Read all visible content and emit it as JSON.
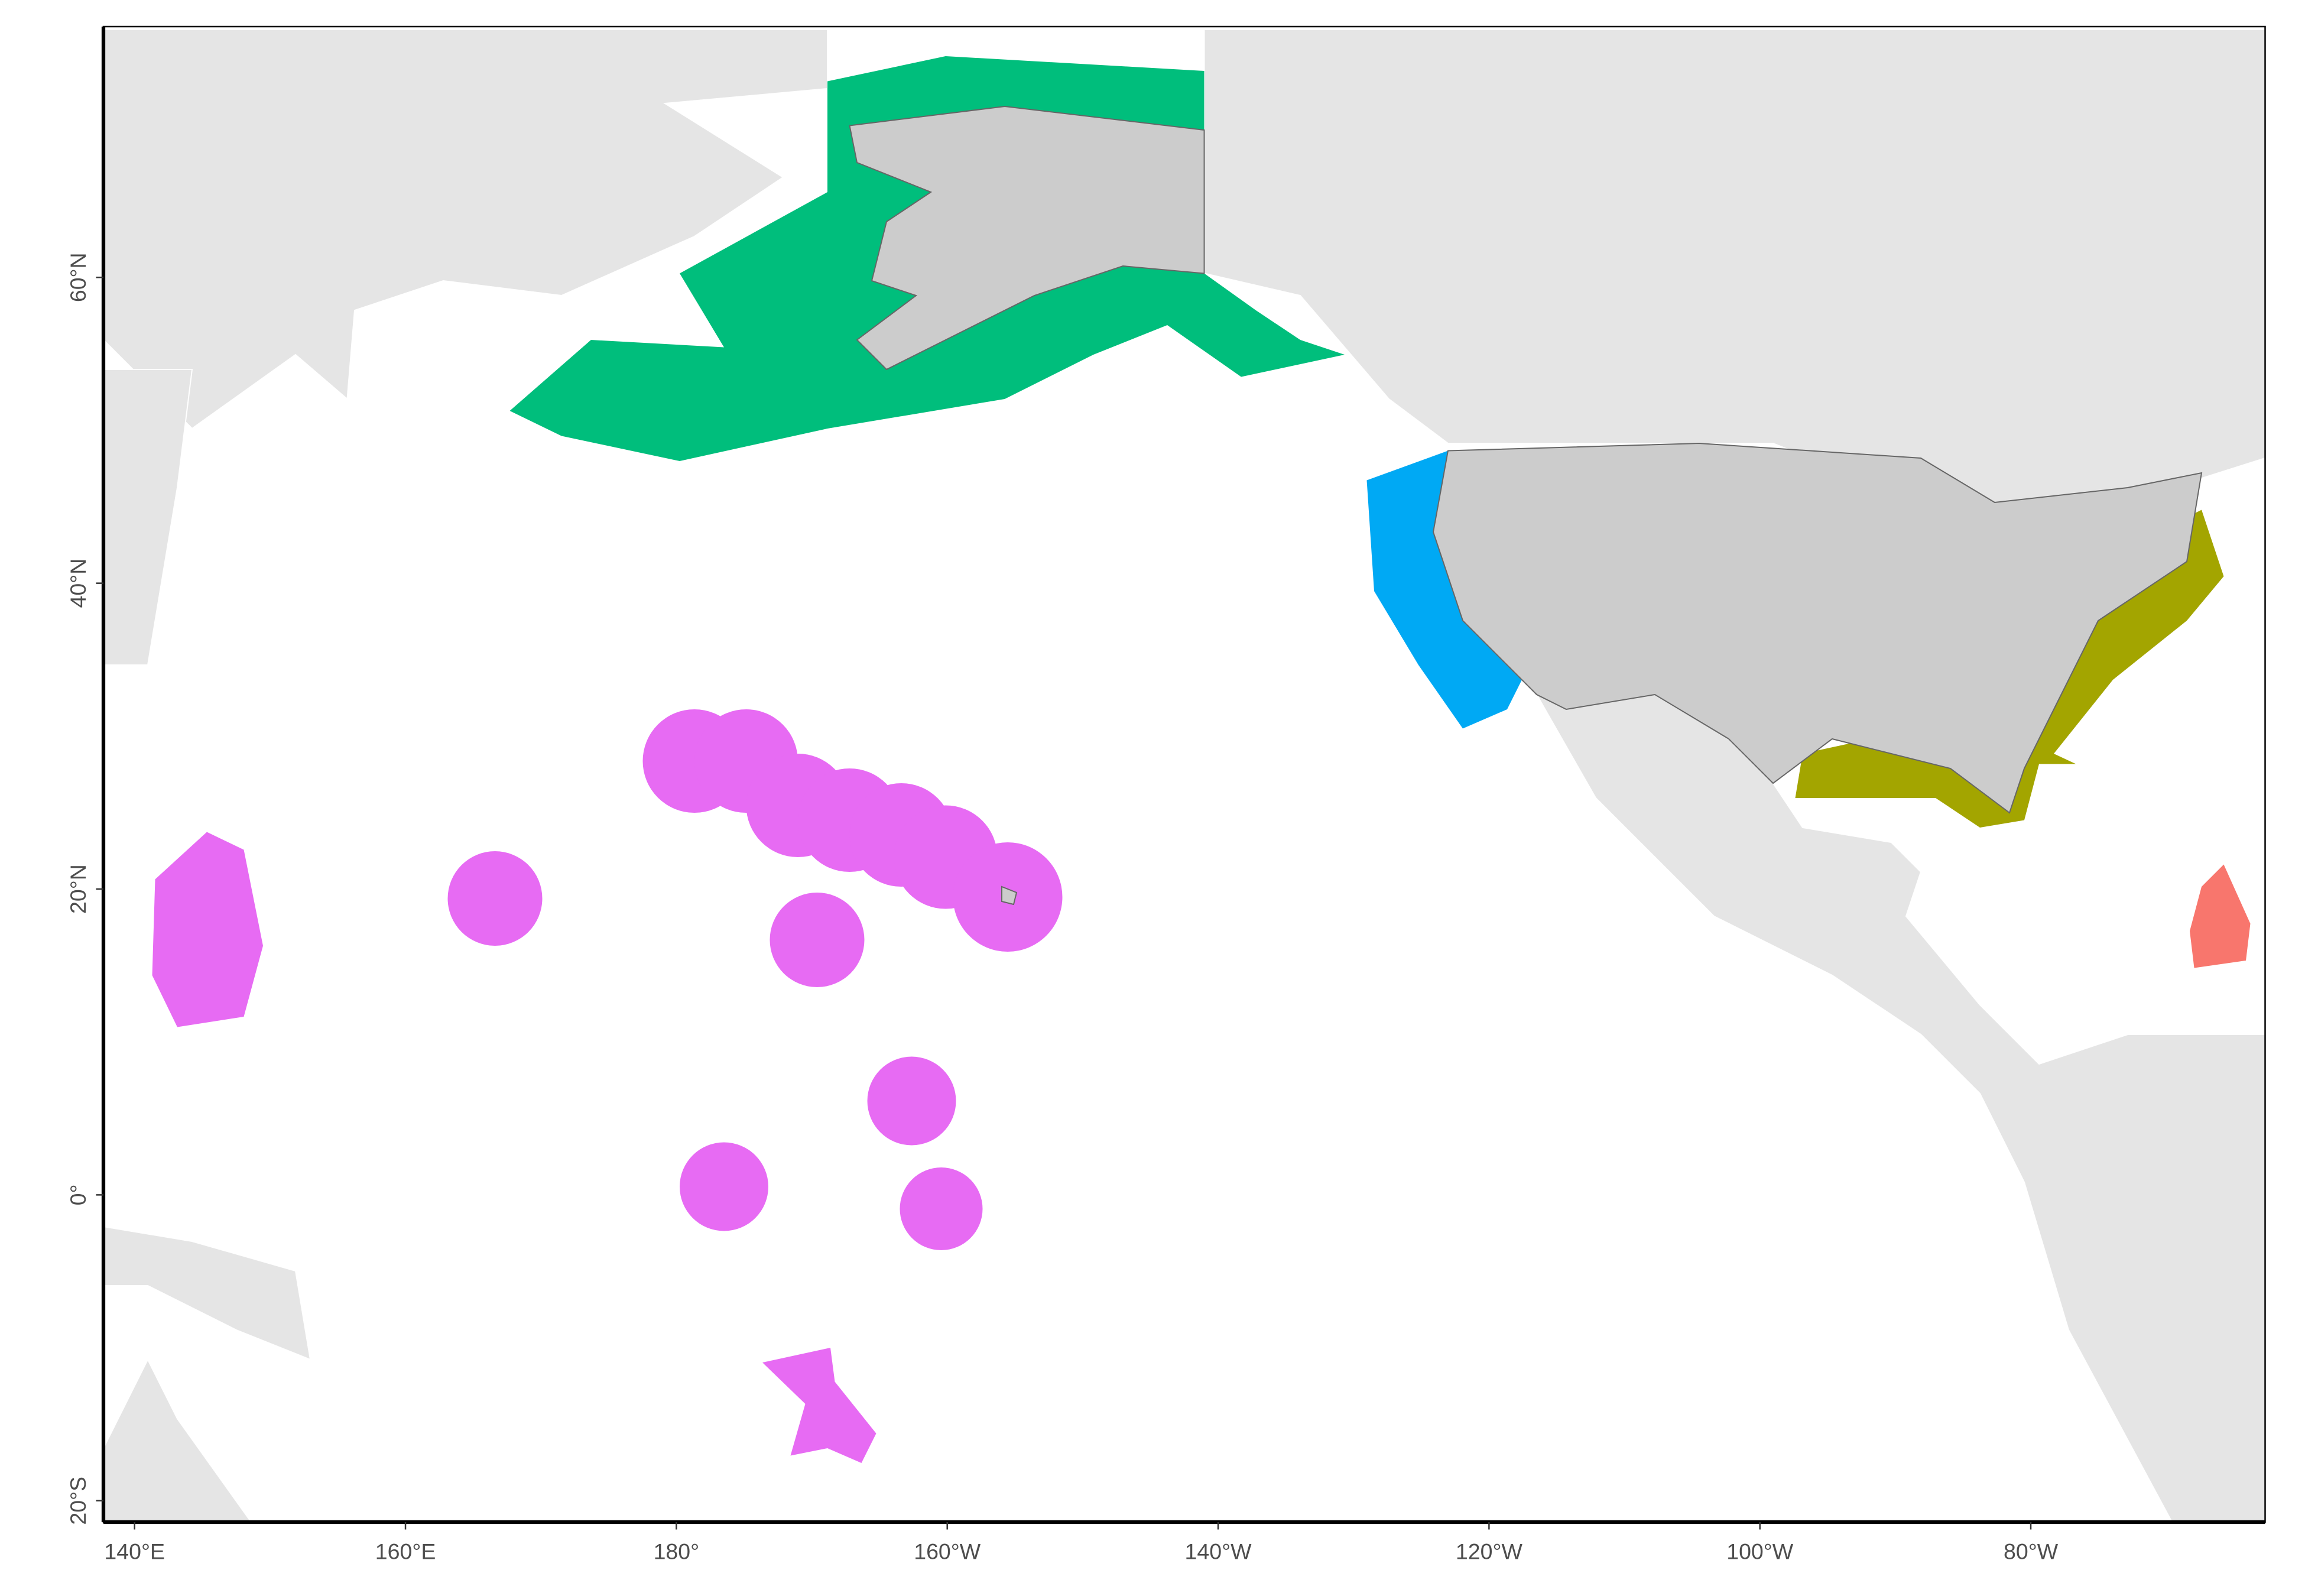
{
  "map": {
    "xlim": [
      137.7,
      297.3
    ],
    "xticks": [
      {
        "value": 140,
        "label": "140°E"
      },
      {
        "value": 160,
        "label": "160°E"
      },
      {
        "value": 180,
        "label": "180°"
      },
      {
        "value": 200,
        "label": "160°W"
      },
      {
        "value": 220,
        "label": "140°W"
      },
      {
        "value": 240,
        "label": "120°W"
      },
      {
        "value": 260,
        "label": "100°W"
      },
      {
        "value": 280,
        "label": "80°W"
      }
    ],
    "ylim": [
      -21.4,
      76.4
    ],
    "yticks": [
      {
        "value": -20,
        "label": "20°S"
      },
      {
        "value": 0,
        "label": "0°"
      },
      {
        "value": 20,
        "label": "20°N"
      },
      {
        "value": 40,
        "label": "40°N"
      },
      {
        "value": 60,
        "label": "60°N"
      }
    ]
  }
}
